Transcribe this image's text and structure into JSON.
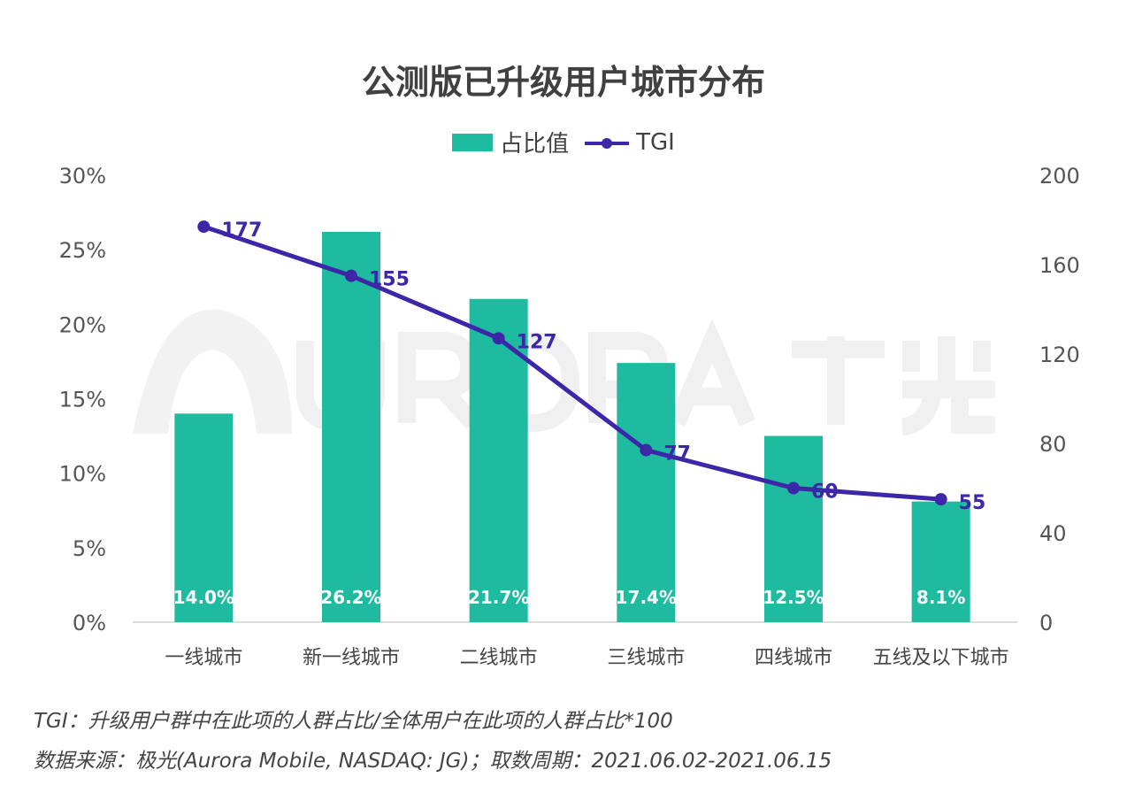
{
  "logo_watermark": "URORA 极光",
  "chart_data": {
    "type": "bar+line",
    "title": "公测版已升级用户城市分布",
    "categories": [
      "一线城市",
      "新一线城市",
      "二线城市",
      "三线城市",
      "四线城市",
      "五线及以下城市"
    ],
    "series": [
      {
        "name": "占比值",
        "type": "bar",
        "axis": "left",
        "values": [
          14.0,
          26.2,
          21.7,
          17.4,
          12.5,
          8.1
        ],
        "labels": [
          "14.0%",
          "26.2%",
          "21.7%",
          "17.4%",
          "12.5%",
          "8.1%"
        ],
        "color": "#1fbba0"
      },
      {
        "name": "TGI",
        "type": "line",
        "axis": "right",
        "values": [
          177,
          155,
          127,
          77,
          60,
          55
        ],
        "labels": [
          "177",
          "155",
          "127",
          "77",
          "60",
          "55"
        ],
        "color": "#3d26a8"
      }
    ],
    "y_left": {
      "range": [
        0,
        30
      ],
      "ticks": [
        "0%",
        "5%",
        "10%",
        "15%",
        "20%",
        "25%",
        "30%"
      ]
    },
    "y_right": {
      "range": [
        0,
        200
      ],
      "ticks": [
        "0",
        "40",
        "80",
        "120",
        "160",
        "200"
      ]
    },
    "grid": false,
    "legend_position": "top"
  },
  "notes": {
    "tgi": "TGI：升级用户群中在此项的人群占比/全体用户在此项的人群占比*100",
    "source": "数据来源：极光(Aurora Mobile, NASDAQ: JG)；取数周期：2021.06.02-2021.06.15"
  }
}
